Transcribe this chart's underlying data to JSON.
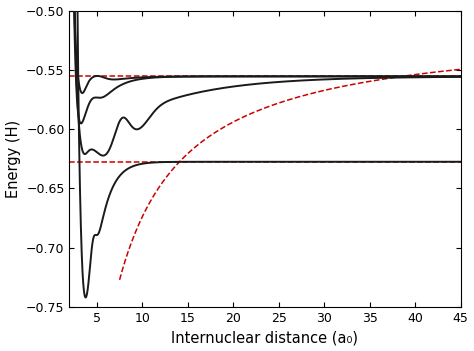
{
  "xlabel": "Internuclear distance (a₀)",
  "ylabel": "Energy (H)",
  "xlim": [
    2,
    45
  ],
  "ylim": [
    -0.75,
    -0.5
  ],
  "yticks": [
    -0.75,
    -0.7,
    -0.65,
    -0.6,
    -0.55,
    -0.5
  ],
  "xticks": [
    5,
    10,
    15,
    20,
    25,
    30,
    35,
    40,
    45
  ],
  "asymptote1": -0.5555,
  "asymptote2": -0.6275,
  "curve_color": "#1a1a1a",
  "red_color": "#cc0000",
  "linewidth_curve": 1.4,
  "linewidth_ref": 1.1
}
